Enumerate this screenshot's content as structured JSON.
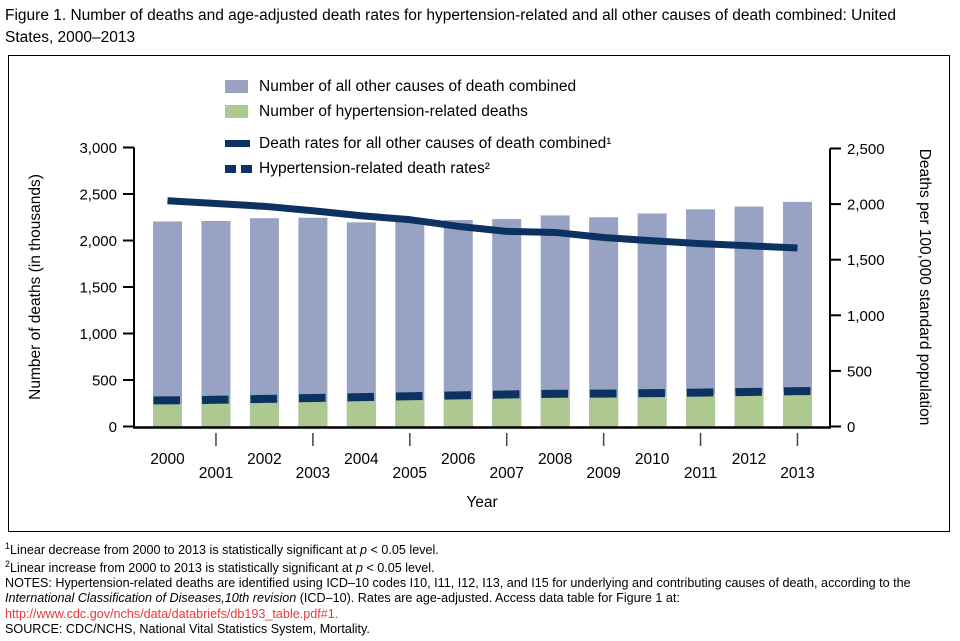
{
  "page": {
    "title": "Figure 1. Number of deaths and age-adjusted death rates for hypertension-related and all other causes of death combined: United States, 2000–2013"
  },
  "colors": {
    "bar_other": "#98A3C4",
    "bar_hypertension": "#ADC891",
    "rate_line_navy": "#0C3262",
    "link_red": "#E8393C",
    "axis_black": "#000000"
  },
  "legend": {
    "items": [
      {
        "label": "Number of all other causes of death combined",
        "swatch": "bar-blue"
      },
      {
        "label": "Number of hypertension-related deaths",
        "swatch": "bar-green"
      },
      {
        "label": "Death rates for all other causes of death combined¹",
        "swatch": "line-solid"
      },
      {
        "label": "Hypertension-related death rates²",
        "swatch": "line-dashed"
      }
    ]
  },
  "chart_data": {
    "type": "bar",
    "subtype": "bars-with-overlaid-rate-lines",
    "categories": [
      "2000",
      "2001",
      "2002",
      "2003",
      "2004",
      "2005",
      "2006",
      "2007",
      "2008",
      "2009",
      "2010",
      "2011",
      "2012",
      "2013"
    ],
    "series": [
      {
        "name": "Number of all other causes of death combined",
        "type": "bar",
        "axis": "left",
        "values": [
          2205,
          2210,
          2240,
          2245,
          2195,
          2225,
          2220,
          2230,
          2270,
          2250,
          2290,
          2335,
          2365,
          2415
        ]
      },
      {
        "name": "Number of hypertension-related deaths",
        "type": "bar",
        "axis": "left",
        "values": [
          245,
          247,
          255,
          263,
          272,
          282,
          292,
          302,
          318,
          320,
          335,
          348,
          367,
          385
        ]
      },
      {
        "name": "Death rates for all other causes of death combined¹",
        "type": "line",
        "style": "solid",
        "axis": "right",
        "values": [
          2030,
          2005,
          1980,
          1940,
          1895,
          1860,
          1800,
          1755,
          1745,
          1700,
          1670,
          1645,
          1625,
          1605
        ]
      },
      {
        "name": "Hypertension-related death rates²",
        "type": "line",
        "style": "dashed",
        "axis": "right",
        "values": [
          235,
          240,
          248,
          256,
          264,
          272,
          280,
          288,
          294,
          296,
          300,
          305,
          310,
          318
        ]
      }
    ],
    "left_axis": {
      "label": "Number of deaths (in thousands)",
      "min": 0,
      "max": 3000,
      "step": 500
    },
    "right_axis": {
      "label": "Deaths per 100,000 standard population",
      "min": 0,
      "max": 2500,
      "step": 500
    },
    "xlabel": "Year",
    "legend_position": "top-inside",
    "grid": false
  },
  "footnotes": {
    "fn1": {
      "sup": "1",
      "pre": "Linear decrease from 2000 to 2013 is statistically significant at ",
      "italic": "p",
      "post": " < 0.05 level."
    },
    "fn2": {
      "sup": "2",
      "pre": "Linear increase from 2000 to 2013 is statistically significant at ",
      "italic": "p",
      "post": " < 0.05 level."
    },
    "notes": {
      "pre": "NOTES: Hypertension-related deaths are identified using ICD–10 codes I10, I11, I12, I13, and I15 for underlying and contributing causes of death, according to the ",
      "italic": "International Classification of Diseases,10th revision",
      "post": " (ICD–10). Rates are age-adjusted. Access data table for Figure 1 at:"
    },
    "link": "http://www.cdc.gov/nchs/data/databriefs/db193_table.pdf#1.",
    "source": "SOURCE: CDC/NCHS, National Vital Statistics System, Mortality."
  }
}
